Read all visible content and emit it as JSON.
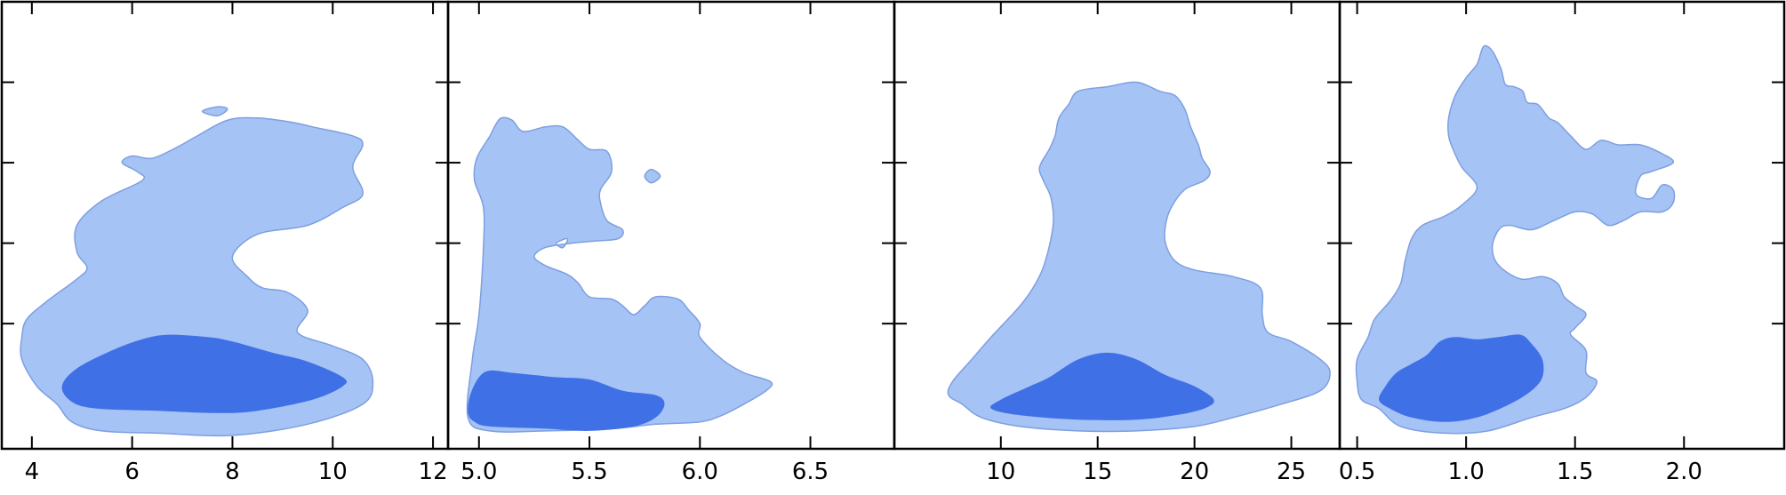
{
  "chart_data": [
    {
      "type": "contour",
      "xticks": [
        4,
        6,
        8,
        10,
        12
      ],
      "tick_labels": [
        "4",
        "6",
        "8",
        "10",
        "12"
      ],
      "xlim": [
        3.4,
        12.3
      ],
      "ylim": [
        0,
        1
      ],
      "colors": {
        "outer": "#a6c3f5",
        "inner": "#4070e6",
        "edge": "#7e9fe0"
      },
      "outer_contour": [
        [
          4.5,
          0.1
        ],
        [
          4.8,
          0.06
        ],
        [
          5.4,
          0.04
        ],
        [
          6.5,
          0.035
        ],
        [
          8,
          0.03
        ],
        [
          9.5,
          0.055
        ],
        [
          10.6,
          0.1
        ],
        [
          10.8,
          0.15
        ],
        [
          10.6,
          0.2
        ],
        [
          10,
          0.23
        ],
        [
          9.3,
          0.26
        ],
        [
          9.5,
          0.31
        ],
        [
          9.1,
          0.35
        ],
        [
          8.6,
          0.36
        ],
        [
          8.3,
          0.385
        ],
        [
          8,
          0.43
        ],
        [
          8.5,
          0.48
        ],
        [
          9.5,
          0.5
        ],
        [
          10.2,
          0.54
        ],
        [
          10.6,
          0.57
        ],
        [
          10.4,
          0.63
        ],
        [
          10.6,
          0.68
        ],
        [
          10.4,
          0.7
        ],
        [
          9.6,
          0.72
        ],
        [
          9.2,
          0.73
        ],
        [
          8.5,
          0.74
        ],
        [
          7.9,
          0.735
        ],
        [
          7.3,
          0.7
        ],
        [
          6.9,
          0.675
        ],
        [
          6.4,
          0.65
        ],
        [
          6,
          0.655
        ],
        [
          5.8,
          0.64
        ],
        [
          6.1,
          0.62
        ],
        [
          6.2,
          0.6
        ],
        [
          5.4,
          0.555
        ],
        [
          4.9,
          0.5
        ],
        [
          4.9,
          0.44
        ],
        [
          5.1,
          0.405
        ],
        [
          4.9,
          0.38
        ],
        [
          4.3,
          0.33
        ],
        [
          3.9,
          0.29
        ],
        [
          3.8,
          0.25
        ],
        [
          3.8,
          0.2
        ],
        [
          4.1,
          0.14
        ]
      ],
      "outer_islands": [
        [
          [
            7.4,
            0.755
          ],
          [
            7.7,
            0.765
          ],
          [
            7.9,
            0.76
          ],
          [
            7.7,
            0.745
          ]
        ]
      ],
      "inner_contour": [
        [
          4.8,
          0.105
        ],
        [
          5.3,
          0.09
        ],
        [
          6.5,
          0.085
        ],
        [
          7.7,
          0.08
        ],
        [
          8.5,
          0.085
        ],
        [
          9.6,
          0.11
        ],
        [
          10.2,
          0.14
        ],
        [
          10.2,
          0.16
        ],
        [
          9.5,
          0.195
        ],
        [
          8.8,
          0.215
        ],
        [
          8,
          0.24
        ],
        [
          7.5,
          0.25
        ],
        [
          6.7,
          0.255
        ],
        [
          6.2,
          0.245
        ],
        [
          5.6,
          0.22
        ],
        [
          4.9,
          0.18
        ],
        [
          4.6,
          0.14
        ]
      ]
    },
    {
      "type": "contour",
      "xticks": [
        5.0,
        5.5,
        6.0,
        6.5
      ],
      "tick_labels": [
        "5.0",
        "5.5",
        "6.0",
        "6.5"
      ],
      "xlim": [
        4.86,
        6.88
      ],
      "ylim": [
        0,
        1
      ],
      "colors": {
        "outer": "#a6c3f5",
        "inner": "#4070e6",
        "edge": "#7e9fe0"
      },
      "outer_contour": [
        [
          4.95,
          0.07
        ],
        [
          5.05,
          0.04
        ],
        [
          5.3,
          0.04
        ],
        [
          5.6,
          0.045
        ],
        [
          5.8,
          0.055
        ],
        [
          6,
          0.06
        ],
        [
          6.1,
          0.075
        ],
        [
          6.2,
          0.1
        ],
        [
          6.3,
          0.13
        ],
        [
          6.32,
          0.15
        ],
        [
          6.2,
          0.17
        ],
        [
          6.1,
          0.2
        ],
        [
          6,
          0.25
        ],
        [
          6,
          0.28
        ],
        [
          5.95,
          0.31
        ],
        [
          5.9,
          0.335
        ],
        [
          5.8,
          0.34
        ],
        [
          5.75,
          0.32
        ],
        [
          5.7,
          0.3
        ],
        [
          5.65,
          0.32
        ],
        [
          5.6,
          0.335
        ],
        [
          5.5,
          0.34
        ],
        [
          5.45,
          0.37
        ],
        [
          5.4,
          0.39
        ],
        [
          5.3,
          0.41
        ],
        [
          5.25,
          0.43
        ],
        [
          5.3,
          0.45
        ],
        [
          5.42,
          0.46
        ],
        [
          5.53,
          0.465
        ],
        [
          5.63,
          0.47
        ],
        [
          5.65,
          0.49
        ],
        [
          5.58,
          0.51
        ],
        [
          5.55,
          0.55
        ],
        [
          5.55,
          0.58
        ],
        [
          5.6,
          0.62
        ],
        [
          5.58,
          0.665
        ],
        [
          5.5,
          0.67
        ],
        [
          5.45,
          0.69
        ],
        [
          5.38,
          0.72
        ],
        [
          5.3,
          0.72
        ],
        [
          5.2,
          0.71
        ],
        [
          5.15,
          0.735
        ],
        [
          5.1,
          0.74
        ],
        [
          5.07,
          0.72
        ],
        [
          5.05,
          0.7
        ],
        [
          4.99,
          0.65
        ],
        [
          4.98,
          0.6
        ],
        [
          5.02,
          0.54
        ],
        [
          5.02,
          0.45
        ],
        [
          5,
          0.3
        ],
        [
          4.97,
          0.2
        ]
      ],
      "outer_islands": [
        [
          [
            5.75,
            0.61
          ],
          [
            5.78,
            0.625
          ],
          [
            5.82,
            0.61
          ],
          [
            5.78,
            0.595
          ]
        ]
      ],
      "outer_holes": [
        [
          [
            5.35,
            0.46
          ],
          [
            5.4,
            0.47
          ],
          [
            5.38,
            0.45
          ]
        ]
      ],
      "inner_contour": [
        [
          4.98,
          0.06
        ],
        [
          5.05,
          0.05
        ],
        [
          5.3,
          0.045
        ],
        [
          5.5,
          0.04
        ],
        [
          5.7,
          0.05
        ],
        [
          5.8,
          0.07
        ],
        [
          5.84,
          0.1
        ],
        [
          5.8,
          0.12
        ],
        [
          5.65,
          0.13
        ],
        [
          5.5,
          0.155
        ],
        [
          5.35,
          0.16
        ],
        [
          5.25,
          0.165
        ],
        [
          5.15,
          0.17
        ],
        [
          5.05,
          0.175
        ],
        [
          5,
          0.16
        ],
        [
          4.96,
          0.12
        ],
        [
          4.95,
          0.08
        ]
      ]
    },
    {
      "type": "contour",
      "xticks": [
        10,
        15,
        20,
        25
      ],
      "tick_labels": [
        "10",
        "15",
        "20",
        "25"
      ],
      "xlim": [
        4.5,
        27.5
      ],
      "ylim": [
        0,
        1
      ],
      "colors": {
        "outer": "#a6c3f5",
        "inner": "#4070e6",
        "edge": "#7e9fe0"
      },
      "outer_contour": [
        [
          8,
          0.1
        ],
        [
          9,
          0.07
        ],
        [
          11,
          0.05
        ],
        [
          14,
          0.04
        ],
        [
          17,
          0.04
        ],
        [
          20,
          0.05
        ],
        [
          22,
          0.07
        ],
        [
          24.5,
          0.1
        ],
        [
          26.5,
          0.13
        ],
        [
          27,
          0.17
        ],
        [
          26.5,
          0.2
        ],
        [
          25,
          0.24
        ],
        [
          23.8,
          0.26
        ],
        [
          23.5,
          0.3
        ],
        [
          23.4,
          0.36
        ],
        [
          22,
          0.385
        ],
        [
          20,
          0.4
        ],
        [
          19,
          0.42
        ],
        [
          18.5,
          0.46
        ],
        [
          18.5,
          0.5
        ],
        [
          18.8,
          0.54
        ],
        [
          19.5,
          0.58
        ],
        [
          20.5,
          0.6
        ],
        [
          20.8,
          0.62
        ],
        [
          20.4,
          0.65
        ],
        [
          20.2,
          0.68
        ],
        [
          19.8,
          0.72
        ],
        [
          19.5,
          0.76
        ],
        [
          19,
          0.79
        ],
        [
          18.2,
          0.8
        ],
        [
          17,
          0.82
        ],
        [
          15.5,
          0.81
        ],
        [
          14,
          0.8
        ],
        [
          13.5,
          0.77
        ],
        [
          13,
          0.74
        ],
        [
          12.8,
          0.7
        ],
        [
          12.5,
          0.67
        ],
        [
          12,
          0.63
        ],
        [
          12.2,
          0.6
        ],
        [
          12.6,
          0.56
        ],
        [
          12.7,
          0.5
        ],
        [
          12.3,
          0.42
        ],
        [
          11.8,
          0.37
        ],
        [
          11,
          0.32
        ],
        [
          9.5,
          0.25
        ],
        [
          8.5,
          0.2
        ],
        [
          7.5,
          0.15
        ],
        [
          7.3,
          0.12
        ]
      ],
      "inner_contour": [
        [
          9.5,
          0.09
        ],
        [
          11,
          0.075
        ],
        [
          14,
          0.065
        ],
        [
          17,
          0.065
        ],
        [
          19,
          0.075
        ],
        [
          20.5,
          0.09
        ],
        [
          21,
          0.11
        ],
        [
          20,
          0.14
        ],
        [
          18.5,
          0.165
        ],
        [
          17,
          0.2
        ],
        [
          15.5,
          0.215
        ],
        [
          14,
          0.2
        ],
        [
          12.5,
          0.16
        ],
        [
          11.5,
          0.14
        ],
        [
          10,
          0.11
        ]
      ]
    },
    {
      "type": "contour",
      "xticks": [
        0.5,
        1.0,
        1.5,
        2.0
      ],
      "tick_labels": [
        "0.5",
        "1.0",
        "1.5",
        "2.0"
      ],
      "xlim": [
        0.42,
        2.46
      ],
      "ylim": [
        0,
        1
      ],
      "colors": {
        "outer": "#a6c3f5",
        "inner": "#4070e6",
        "edge": "#7e9fe0"
      },
      "outer_contour": [
        [
          0.6,
          0.09
        ],
        [
          0.7,
          0.05
        ],
        [
          0.9,
          0.035
        ],
        [
          1.1,
          0.04
        ],
        [
          1.3,
          0.07
        ],
        [
          1.45,
          0.09
        ],
        [
          1.55,
          0.115
        ],
        [
          1.6,
          0.15
        ],
        [
          1.55,
          0.17
        ],
        [
          1.55,
          0.22
        ],
        [
          1.48,
          0.255
        ],
        [
          1.5,
          0.27
        ],
        [
          1.55,
          0.3
        ],
        [
          1.5,
          0.32
        ],
        [
          1.45,
          0.34
        ],
        [
          1.42,
          0.37
        ],
        [
          1.35,
          0.385
        ],
        [
          1.25,
          0.38
        ],
        [
          1.15,
          0.41
        ],
        [
          1.12,
          0.45
        ],
        [
          1.15,
          0.49
        ],
        [
          1.2,
          0.5
        ],
        [
          1.3,
          0.49
        ],
        [
          1.4,
          0.51
        ],
        [
          1.5,
          0.53
        ],
        [
          1.58,
          0.525
        ],
        [
          1.65,
          0.5
        ],
        [
          1.72,
          0.51
        ],
        [
          1.8,
          0.53
        ],
        [
          1.9,
          0.53
        ],
        [
          1.95,
          0.55
        ],
        [
          1.95,
          0.58
        ],
        [
          1.9,
          0.59
        ],
        [
          1.85,
          0.56
        ],
        [
          1.78,
          0.57
        ],
        [
          1.8,
          0.61
        ],
        [
          1.85,
          0.62
        ],
        [
          1.95,
          0.64
        ],
        [
          1.9,
          0.66
        ],
        [
          1.8,
          0.68
        ],
        [
          1.7,
          0.68
        ],
        [
          1.62,
          0.69
        ],
        [
          1.55,
          0.67
        ],
        [
          1.48,
          0.7
        ],
        [
          1.42,
          0.73
        ],
        [
          1.38,
          0.74
        ],
        [
          1.33,
          0.77
        ],
        [
          1.28,
          0.775
        ],
        [
          1.26,
          0.8
        ],
        [
          1.22,
          0.81
        ],
        [
          1.18,
          0.815
        ],
        [
          1.16,
          0.85
        ],
        [
          1.12,
          0.89
        ],
        [
          1.08,
          0.9
        ],
        [
          1.05,
          0.86
        ],
        [
          1,
          0.83
        ],
        [
          0.95,
          0.79
        ],
        [
          0.92,
          0.74
        ],
        [
          0.92,
          0.7
        ],
        [
          0.94,
          0.67
        ],
        [
          0.98,
          0.63
        ],
        [
          1.05,
          0.585
        ],
        [
          0.98,
          0.545
        ],
        [
          0.9,
          0.52
        ],
        [
          0.8,
          0.5
        ],
        [
          0.75,
          0.47
        ],
        [
          0.72,
          0.42
        ],
        [
          0.7,
          0.37
        ],
        [
          0.65,
          0.33
        ],
        [
          0.58,
          0.29
        ],
        [
          0.55,
          0.25
        ],
        [
          0.5,
          0.2
        ],
        [
          0.5,
          0.15
        ],
        [
          0.52,
          0.11
        ]
      ],
      "inner_contour": [
        [
          0.65,
          0.09
        ],
        [
          0.75,
          0.07
        ],
        [
          0.9,
          0.06
        ],
        [
          1.05,
          0.07
        ],
        [
          1.2,
          0.1
        ],
        [
          1.3,
          0.13
        ],
        [
          1.35,
          0.16
        ],
        [
          1.35,
          0.2
        ],
        [
          1.3,
          0.235
        ],
        [
          1.25,
          0.255
        ],
        [
          1.15,
          0.25
        ],
        [
          1.05,
          0.245
        ],
        [
          0.95,
          0.25
        ],
        [
          0.88,
          0.24
        ],
        [
          0.82,
          0.21
        ],
        [
          0.75,
          0.19
        ],
        [
          0.68,
          0.17
        ],
        [
          0.63,
          0.14
        ],
        [
          0.6,
          0.11
        ]
      ]
    }
  ],
  "y_tick_positions": [
    0.28,
    0.46,
    0.64,
    0.82
  ]
}
